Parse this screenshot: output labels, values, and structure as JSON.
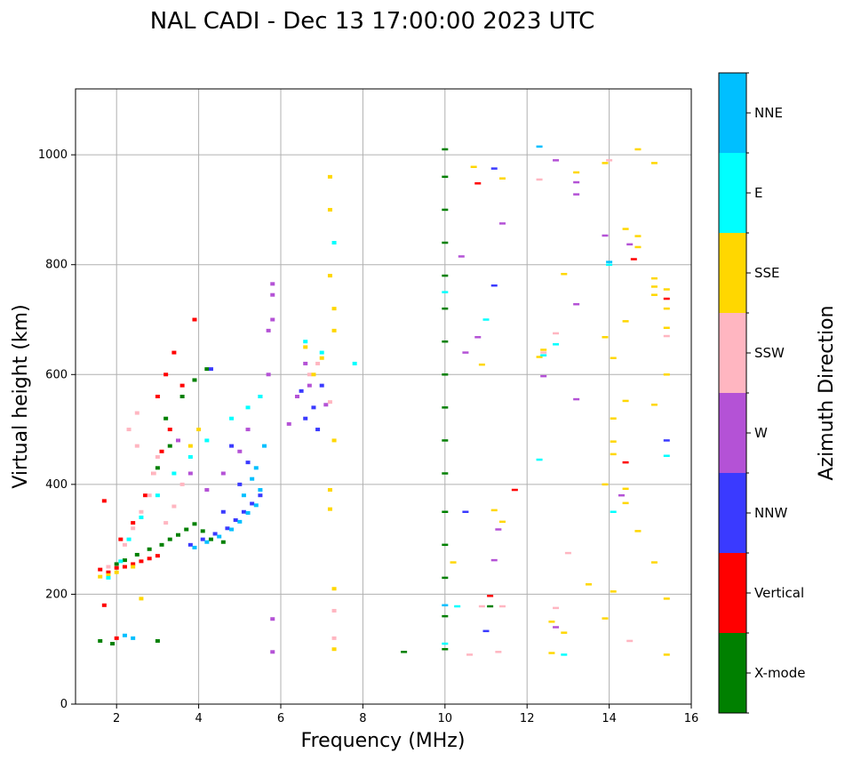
{
  "chart_data": {
    "type": "scatter",
    "title": "NAL CADI - Dec 13 17:00:00 2023 UTC",
    "xlabel": "Frequency (MHz)",
    "ylabel": "Virtual height (km)",
    "xlim": [
      1,
      16
    ],
    "ylim": [
      0,
      1120
    ],
    "xticks": [
      2,
      4,
      6,
      8,
      10,
      12,
      14,
      16
    ],
    "yticks": [
      0,
      200,
      400,
      600,
      800,
      1000
    ],
    "grid": true,
    "colorbar": {
      "label": "Azimuth Direction",
      "categories": [
        {
          "name": "X-mode",
          "color": "#008000"
        },
        {
          "name": "Vertical",
          "color": "#ff0000"
        },
        {
          "name": "NNW",
          "color": "#3a3aff"
        },
        {
          "name": "W",
          "color": "#b452d6"
        },
        {
          "name": "SSW",
          "color": "#ffb6c1"
        },
        {
          "name": "SSE",
          "color": "#ffd700"
        },
        {
          "name": "E",
          "color": "#00ffff"
        },
        {
          "name": "NNE",
          "color": "#00bfff"
        }
      ]
    },
    "series": [
      {
        "name": "X-mode",
        "points": [
          [
            1.6,
            115
          ],
          [
            2.0,
            255
          ],
          [
            2.2,
            262
          ],
          [
            2.5,
            272
          ],
          [
            2.8,
            282
          ],
          [
            3.1,
            290
          ],
          [
            3.3,
            300
          ],
          [
            3.5,
            308
          ],
          [
            3.7,
            318
          ],
          [
            3.9,
            328
          ],
          [
            4.1,
            315
          ],
          [
            4.3,
            300
          ],
          [
            4.6,
            295
          ],
          [
            3.0,
            430
          ],
          [
            3.3,
            470
          ],
          [
            3.6,
            560
          ],
          [
            3.9,
            590
          ],
          [
            4.2,
            610
          ],
          [
            3.2,
            520
          ],
          [
            1.9,
            110
          ],
          [
            3.0,
            115
          ],
          [
            9.0,
            95
          ],
          [
            10.0,
            100
          ],
          [
            10.0,
            160
          ],
          [
            10.0,
            230
          ],
          [
            10.0,
            290
          ],
          [
            10.0,
            350
          ],
          [
            10.0,
            420
          ],
          [
            10.0,
            480
          ],
          [
            10.0,
            540
          ],
          [
            10.0,
            600
          ],
          [
            10.0,
            660
          ],
          [
            10.0,
            720
          ],
          [
            10.0,
            780
          ],
          [
            10.0,
            840
          ],
          [
            10.0,
            900
          ],
          [
            10.0,
            960
          ],
          [
            10.0,
            1010
          ],
          [
            11.1,
            178
          ]
        ]
      },
      {
        "name": "Vertical",
        "points": [
          [
            1.6,
            245
          ],
          [
            1.8,
            240
          ],
          [
            2.0,
            248
          ],
          [
            2.2,
            250
          ],
          [
            2.4,
            255
          ],
          [
            2.6,
            260
          ],
          [
            2.8,
            265
          ],
          [
            3.0,
            270
          ],
          [
            2.1,
            300
          ],
          [
            2.4,
            330
          ],
          [
            2.7,
            380
          ],
          [
            2.9,
            420
          ],
          [
            3.1,
            460
          ],
          [
            3.3,
            500
          ],
          [
            3.0,
            560
          ],
          [
            3.2,
            600
          ],
          [
            3.4,
            640
          ],
          [
            3.6,
            580
          ],
          [
            3.9,
            700
          ],
          [
            1.7,
            370
          ],
          [
            1.7,
            180
          ],
          [
            2.0,
            120
          ],
          [
            11.7,
            390
          ],
          [
            11.1,
            197
          ],
          [
            10.8,
            948
          ],
          [
            14.4,
            440
          ],
          [
            14.6,
            810
          ],
          [
            15.4,
            738
          ]
        ]
      },
      {
        "name": "NNW",
        "points": [
          [
            3.8,
            290
          ],
          [
            4.1,
            300
          ],
          [
            4.4,
            310
          ],
          [
            4.7,
            320
          ],
          [
            4.9,
            335
          ],
          [
            5.1,
            350
          ],
          [
            5.3,
            365
          ],
          [
            5.5,
            380
          ],
          [
            4.6,
            350
          ],
          [
            5.0,
            400
          ],
          [
            5.2,
            440
          ],
          [
            4.8,
            470
          ],
          [
            6.5,
            570
          ],
          [
            6.8,
            540
          ],
          [
            7.0,
            580
          ],
          [
            6.6,
            520
          ],
          [
            6.9,
            500
          ],
          [
            4.3,
            610
          ],
          [
            10.5,
            350
          ],
          [
            11.0,
            133
          ],
          [
            11.2,
            975
          ],
          [
            11.2,
            762
          ],
          [
            15.4,
            480
          ]
        ]
      },
      {
        "name": "W",
        "points": [
          [
            3.5,
            480
          ],
          [
            3.8,
            420
          ],
          [
            4.2,
            390
          ],
          [
            4.6,
            420
          ],
          [
            5.0,
            460
          ],
          [
            5.2,
            500
          ],
          [
            5.5,
            560
          ],
          [
            5.7,
            600
          ],
          [
            5.7,
            680
          ],
          [
            5.8,
            765
          ],
          [
            5.8,
            745
          ],
          [
            5.8,
            700
          ],
          [
            6.2,
            510
          ],
          [
            6.4,
            560
          ],
          [
            6.6,
            620
          ],
          [
            6.7,
            580
          ],
          [
            7.1,
            545
          ],
          [
            5.8,
            155
          ],
          [
            5.8,
            95
          ],
          [
            10.4,
            815
          ],
          [
            10.8,
            668
          ],
          [
            10.5,
            640
          ],
          [
            11.4,
            875
          ],
          [
            11.3,
            318
          ],
          [
            11.2,
            262
          ],
          [
            12.7,
            990
          ],
          [
            13.2,
            950
          ],
          [
            13.2,
            928
          ],
          [
            13.2,
            728
          ],
          [
            13.2,
            555
          ],
          [
            12.4,
            597
          ],
          [
            13.9,
            853
          ],
          [
            14.5,
            837
          ],
          [
            14.3,
            380
          ],
          [
            12.7,
            140
          ]
        ]
      },
      {
        "name": "SSW",
        "points": [
          [
            1.8,
            250
          ],
          [
            2.2,
            290
          ],
          [
            2.4,
            320
          ],
          [
            2.6,
            350
          ],
          [
            2.8,
            380
          ],
          [
            2.9,
            420
          ],
          [
            3.0,
            450
          ],
          [
            2.5,
            470
          ],
          [
            2.3,
            500
          ],
          [
            2.5,
            530
          ],
          [
            3.2,
            330
          ],
          [
            3.4,
            360
          ],
          [
            3.6,
            400
          ],
          [
            6.7,
            600
          ],
          [
            6.9,
            620
          ],
          [
            7.2,
            550
          ],
          [
            7.3,
            120
          ],
          [
            7.3,
            170
          ],
          [
            10.6,
            90
          ],
          [
            10.9,
            178
          ],
          [
            11.4,
            178
          ],
          [
            11.3,
            95
          ],
          [
            12.3,
            955
          ],
          [
            12.4,
            640
          ],
          [
            12.7,
            675
          ],
          [
            13.0,
            275
          ],
          [
            12.7,
            175
          ],
          [
            14.5,
            115
          ],
          [
            14.0,
            990
          ],
          [
            15.4,
            670
          ]
        ]
      },
      {
        "name": "SSE",
        "points": [
          [
            1.6,
            232
          ],
          [
            1.8,
            235
          ],
          [
            2.0,
            240
          ],
          [
            2.4,
            250
          ],
          [
            2.6,
            192
          ],
          [
            3.8,
            470
          ],
          [
            4.0,
            500
          ],
          [
            6.6,
            650
          ],
          [
            6.8,
            600
          ],
          [
            7.0,
            630
          ],
          [
            7.2,
            780
          ],
          [
            7.2,
            900
          ],
          [
            7.2,
            960
          ],
          [
            7.3,
            720
          ],
          [
            7.3,
            680
          ],
          [
            7.3,
            480
          ],
          [
            7.2,
            390
          ],
          [
            7.2,
            355
          ],
          [
            7.3,
            210
          ],
          [
            7.3,
            100
          ],
          [
            10.2,
            258
          ],
          [
            10.7,
            978
          ],
          [
            10.9,
            618
          ],
          [
            11.2,
            353
          ],
          [
            11.4,
            332
          ],
          [
            11.4,
            957
          ],
          [
            12.3,
            632
          ],
          [
            12.4,
            645
          ],
          [
            12.6,
            150
          ],
          [
            12.6,
            93
          ],
          [
            12.9,
            130
          ],
          [
            12.9,
            783
          ],
          [
            13.2,
            968
          ],
          [
            13.5,
            218
          ],
          [
            13.9,
            985
          ],
          [
            13.9,
            668
          ],
          [
            13.9,
            400
          ],
          [
            13.9,
            156
          ],
          [
            14.1,
            630
          ],
          [
            14.1,
            520
          ],
          [
            14.1,
            478
          ],
          [
            14.1,
            455
          ],
          [
            14.1,
            205
          ],
          [
            14.4,
            865
          ],
          [
            14.4,
            697
          ],
          [
            14.4,
            552
          ],
          [
            14.4,
            392
          ],
          [
            14.4,
            366
          ],
          [
            14.7,
            1010
          ],
          [
            14.7,
            852
          ],
          [
            14.7,
            832
          ],
          [
            14.7,
            315
          ],
          [
            15.1,
            985
          ],
          [
            15.1,
            775
          ],
          [
            15.1,
            760
          ],
          [
            15.1,
            745
          ],
          [
            15.1,
            545
          ],
          [
            15.1,
            258
          ],
          [
            15.4,
            755
          ],
          [
            15.4,
            720
          ],
          [
            15.4,
            685
          ],
          [
            15.4,
            600
          ],
          [
            15.4,
            192
          ],
          [
            15.4,
            90
          ]
        ]
      },
      {
        "name": "E",
        "points": [
          [
            1.8,
            230
          ],
          [
            2.1,
            260
          ],
          [
            2.3,
            300
          ],
          [
            2.6,
            340
          ],
          [
            3.0,
            380
          ],
          [
            3.4,
            420
          ],
          [
            3.8,
            450
          ],
          [
            4.2,
            480
          ],
          [
            4.8,
            520
          ],
          [
            5.2,
            540
          ],
          [
            5.5,
            560
          ],
          [
            6.6,
            660
          ],
          [
            7.0,
            640
          ],
          [
            7.3,
            840
          ],
          [
            7.8,
            620
          ],
          [
            10.0,
            750
          ],
          [
            10.0,
            110
          ],
          [
            10.3,
            178
          ],
          [
            11.0,
            700
          ],
          [
            12.3,
            445
          ],
          [
            12.4,
            635
          ],
          [
            12.7,
            655
          ],
          [
            12.9,
            90
          ],
          [
            14.1,
            350
          ],
          [
            14.0,
            800
          ],
          [
            15.4,
            452
          ]
        ]
      },
      {
        "name": "NNE",
        "points": [
          [
            3.9,
            285
          ],
          [
            4.2,
            295
          ],
          [
            4.5,
            305
          ],
          [
            4.8,
            318
          ],
          [
            5.0,
            332
          ],
          [
            5.2,
            348
          ],
          [
            5.4,
            362
          ],
          [
            5.5,
            390
          ],
          [
            5.4,
            430
          ],
          [
            5.6,
            470
          ],
          [
            5.3,
            410
          ],
          [
            5.1,
            380
          ],
          [
            2.2,
            125
          ],
          [
            2.4,
            120
          ],
          [
            10.0,
            180
          ],
          [
            12.3,
            1015
          ],
          [
            14.0,
            805
          ]
        ]
      }
    ]
  }
}
